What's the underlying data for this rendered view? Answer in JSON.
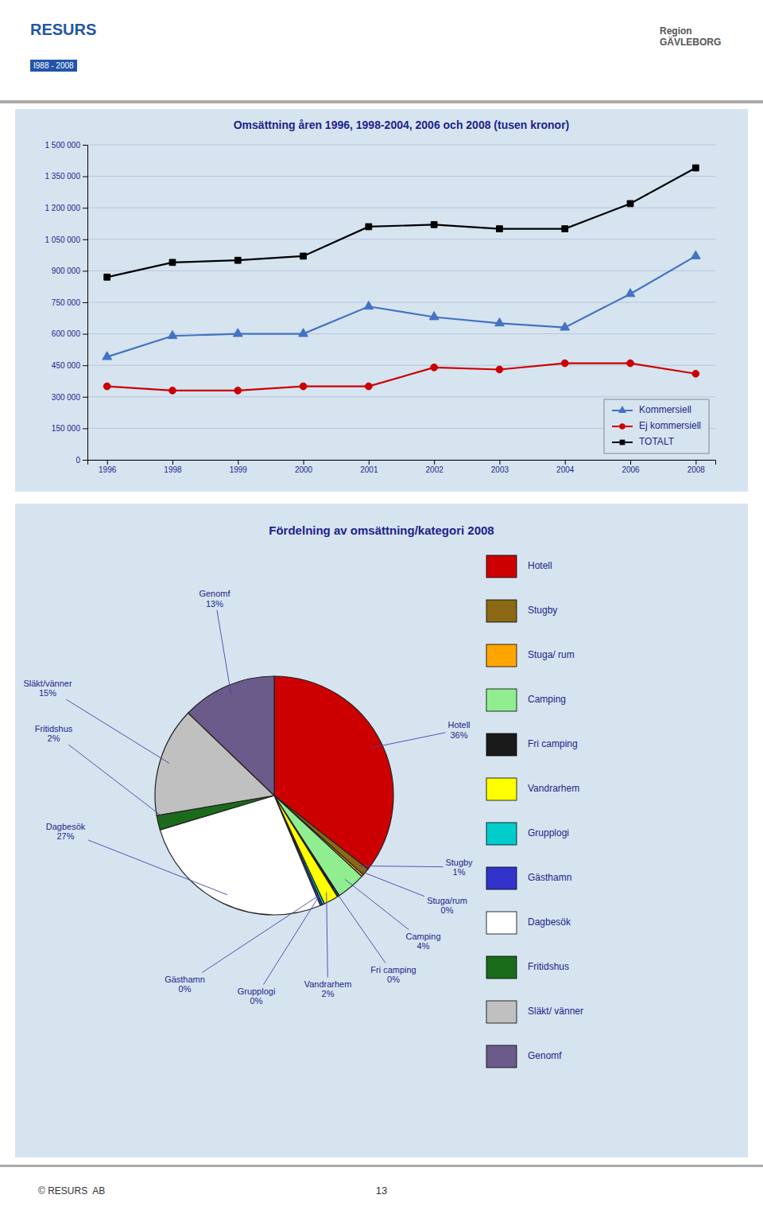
{
  "chart_data": [
    {
      "type": "line",
      "title": "Omsättning åren 1996, 1998-2004, 2006 och 2008 (tusen kronor)",
      "categories": [
        "1996",
        "1998",
        "1999",
        "2000",
        "2001",
        "2002",
        "2003",
        "2004",
        "2006",
        "2008"
      ],
      "series": [
        {
          "name": "Kommersiell",
          "color": "#4472C4",
          "marker": "triangle",
          "values": [
            490000,
            590000,
            600000,
            600000,
            730000,
            680000,
            650000,
            630000,
            790000,
            970000
          ]
        },
        {
          "name": "Ej kommersiell",
          "color": "#CC0000",
          "marker": "circle",
          "values": [
            350000,
            330000,
            330000,
            350000,
            350000,
            440000,
            430000,
            460000,
            460000,
            410000
          ]
        },
        {
          "name": "TOTALT",
          "color": "#000000",
          "marker": "square",
          "values": [
            870000,
            940000,
            950000,
            970000,
            1110000,
            1120000,
            1100000,
            1100000,
            1220000,
            1390000
          ]
        }
      ],
      "ylim": [
        0,
        1500000
      ],
      "yticks": [
        0,
        {
          "value": 150000,
          "label": "150 000"
        },
        {
          "value": 300000,
          "label": "300 000"
        },
        {
          "value": 450000,
          "label": "450 000"
        },
        {
          "value": 600000,
          "label": "600 000"
        },
        {
          "value": 750000,
          "label": "750 000"
        },
        {
          "value": 900000,
          "label": "900 000"
        },
        {
          "value": 1050000,
          "label": "1 050 000"
        },
        {
          "value": 1200000,
          "label": "1 200 000"
        },
        {
          "value": 1350000,
          "label": "1 350 000"
        },
        {
          "value": 1500000,
          "label": "1 500 000"
        }
      ],
      "grid": true,
      "legend": "lower right",
      "annotations": [
        "RESURS",
        "I988 - 2008",
        "Region\nGÄVLEBORG",
        "© RESURS  AB",
        "13"
      ]
    },
    {
      "type": "pie",
      "title": "Fördelning av omsättning/kategori 2008",
      "categories": [
        "Hotell",
        "Stugby",
        "Stuga/ rum",
        "Camping",
        "Fri camping",
        "Vandrarhem",
        "Grupplogi",
        "Gästhamn",
        "Dagbesök",
        "Fritidshus",
        "Släkt/ vänner",
        "Genomf"
      ],
      "values": [
        36,
        1,
        0.3,
        4,
        0.3,
        2,
        0.3,
        0.3,
        27,
        2,
        15,
        13
      ],
      "value_labels": [
        "Hotell\n36%",
        "Stugby\n1%",
        "Stuga/rum\n0%",
        "Camping\n4%",
        "Fri camping\n0%",
        "Vandrarhem\n2%",
        "Grupplogi\n0%",
        "Gästhamn\n0%",
        "Dagbesök\n27%",
        "Fritidshus\n2%",
        "Släkt/vänner\n15%",
        "Genomf\n13%"
      ],
      "colors": [
        "#CC0000",
        "#8B6914",
        "#FFA500",
        "#90EE90",
        "#1A1A1A",
        "#FFFF00",
        "#00CCCC",
        "#3333CC",
        "#FFFFFF",
        "#1A6B1A",
        "#C0C0C0",
        "#6B5B8B"
      ],
      "data_labels": true
    }
  ]
}
